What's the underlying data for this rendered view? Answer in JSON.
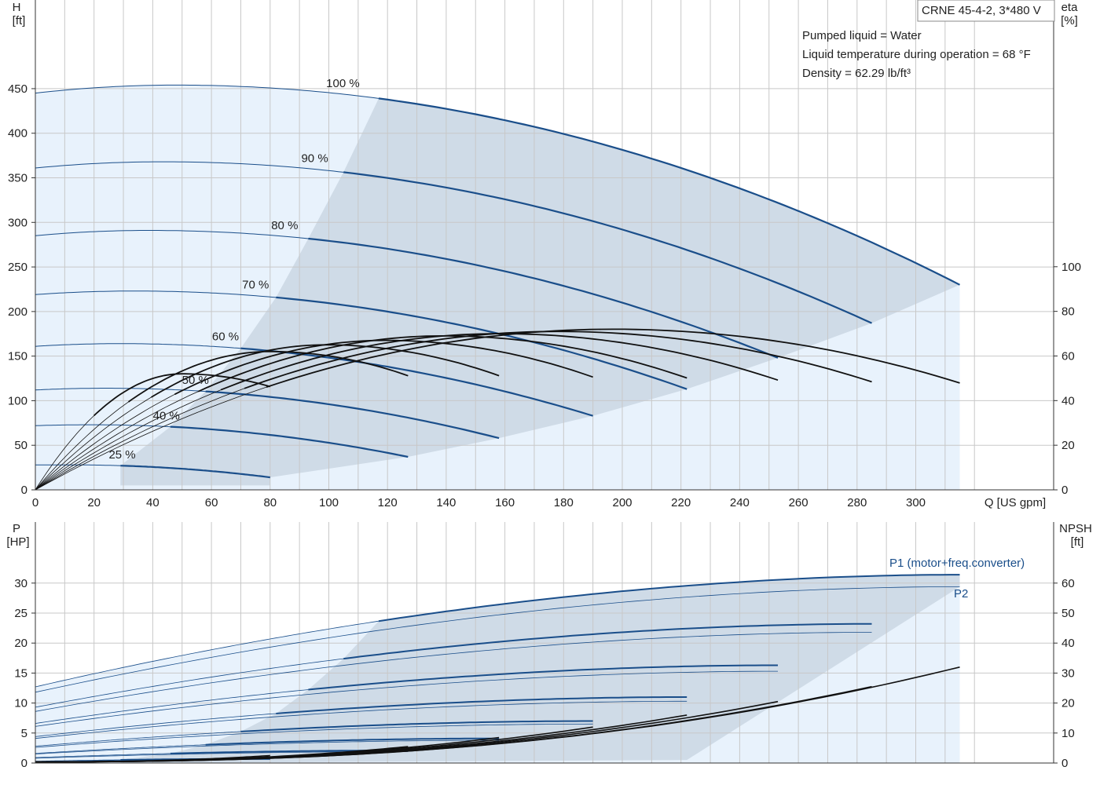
{
  "header": {
    "model": "CRNE 45-4-2, 3*480 V",
    "conditions": [
      "Pumped liquid = Water",
      "Liquid temperature during operation = 68 °F",
      "Density = 62.29 lb/ft³"
    ]
  },
  "colors": {
    "curve_blue": "#1a4e8a",
    "curve_black": "#111111",
    "band_light": "#e8f2fc",
    "band_dark": "#cfdbe7",
    "grid": "#c8c8c8"
  },
  "chart_data": [
    {
      "type": "line",
      "name": "head-efficiency",
      "xlabel": "Q [US gpm]",
      "ylabel_left": [
        "H",
        "[ft]"
      ],
      "ylabel_right": [
        "eta",
        "[%]"
      ],
      "xlim": [
        0,
        320
      ],
      "ylim_left": [
        0,
        500
      ],
      "ylim_right": [
        0,
        100
      ],
      "x_ticks": [
        0,
        20,
        40,
        60,
        80,
        100,
        120,
        140,
        160,
        180,
        200,
        220,
        240,
        260,
        280,
        300
      ],
      "y_ticks_left": [
        0,
        50,
        100,
        150,
        200,
        250,
        300,
        350,
        400,
        450
      ],
      "y_ticks_right": [
        0,
        20,
        40,
        60,
        80,
        100
      ],
      "grid": true,
      "head_curves": [
        {
          "label": "100 %",
          "H0": 445,
          "Hmax": 454,
          "xmax": 315,
          "Hend": 230,
          "xopt": 117
        },
        {
          "label": "90 %",
          "H0": 361,
          "Hmax": 368,
          "xmax": 285,
          "Hend": 187,
          "xopt": 105
        },
        {
          "label": "80 %",
          "H0": 285,
          "Hmax": 291,
          "xmax": 253,
          "Hend": 148,
          "xopt": 93
        },
        {
          "label": "70 %",
          "H0": 219,
          "Hmax": 223,
          "xmax": 222,
          "Hend": 113,
          "xopt": 82
        },
        {
          "label": "60 %",
          "H0": 161,
          "Hmax": 164,
          "xmax": 190,
          "Hend": 83,
          "xopt": 70
        },
        {
          "label": "50 %",
          "H0": 112,
          "Hmax": 114,
          "xmax": 158,
          "Hend": 58,
          "xopt": 58
        },
        {
          "label": "40 %",
          "H0": 72,
          "Hmax": 73,
          "xmax": 127,
          "Hend": 37,
          "xopt": 46
        },
        {
          "label": "25 %",
          "H0": 28,
          "Hmax": 28,
          "xmax": 80,
          "Hend": 14,
          "xopt": 29
        }
      ],
      "efficiency_curves": [
        {
          "xmax": 315,
          "etaPeak": 72,
          "xPeak": 197
        },
        {
          "xmax": 285,
          "etaPeak": 71,
          "xPeak": 178
        },
        {
          "xmax": 253,
          "etaPeak": 70,
          "xPeak": 158
        },
        {
          "xmax": 222,
          "etaPeak": 69,
          "xPeak": 139
        },
        {
          "xmax": 190,
          "etaPeak": 67,
          "xPeak": 119
        },
        {
          "xmax": 158,
          "etaPeak": 65,
          "xPeak": 99
        },
        {
          "xmax": 127,
          "etaPeak": 62,
          "xPeak": 80
        },
        {
          "xmax": 80,
          "etaPeak": 52,
          "xPeak": 50
        }
      ]
    },
    {
      "type": "line",
      "name": "power-npsh",
      "xlim": [
        0,
        320
      ],
      "ylabel_left": [
        "P",
        "[HP]"
      ],
      "ylabel_right": [
        "NPSH",
        "[ft]"
      ],
      "ylim_left": [
        0,
        35
      ],
      "ylim_right": [
        0,
        70
      ],
      "y_ticks_left": [
        0,
        5,
        10,
        15,
        20,
        25,
        30
      ],
      "y_ticks_right": [
        0,
        10,
        20,
        30,
        40,
        50,
        60
      ],
      "grid": true,
      "series_labels": [
        "P1 (motor+freq.converter)",
        "P2"
      ],
      "power_curves": [
        {
          "xmax": 315,
          "P1_0": 12.7,
          "P1_end": 31.4,
          "P2_0": 11.8,
          "P2_end": 29.4,
          "xopt": 117
        },
        {
          "xmax": 285,
          "P1_0": 9.3,
          "P1_end": 23.2,
          "P2_0": 8.6,
          "P2_end": 21.8,
          "xopt": 105
        },
        {
          "xmax": 253,
          "P1_0": 6.6,
          "P1_end": 16.3,
          "P2_0": 6.1,
          "P2_end": 15.3,
          "xopt": 93
        },
        {
          "xmax": 222,
          "P1_0": 4.4,
          "P1_end": 11.0,
          "P2_0": 4.1,
          "P2_end": 10.3,
          "xopt": 82
        },
        {
          "xmax": 190,
          "P1_0": 2.8,
          "P1_end": 7.0,
          "P2_0": 2.6,
          "P2_end": 6.5,
          "xopt": 70
        },
        {
          "xmax": 158,
          "P1_0": 1.6,
          "P1_end": 4.1,
          "P2_0": 1.5,
          "P2_end": 3.8,
          "xopt": 58
        },
        {
          "xmax": 127,
          "P1_0": 0.9,
          "P1_end": 2.1,
          "P2_0": 0.8,
          "P2_end": 1.9,
          "xopt": 46
        },
        {
          "xmax": 80,
          "P1_0": 0.3,
          "P1_end": 0.7,
          "P2_0": 0.2,
          "P2_end": 0.6,
          "xopt": 29
        }
      ],
      "npsh_curves": [
        {
          "xmax": 315,
          "npsh_end": 32
        },
        {
          "xmax": 285,
          "npsh_end": 25.5
        },
        {
          "xmax": 253,
          "npsh_end": 20.5
        },
        {
          "xmax": 222,
          "npsh_end": 16
        },
        {
          "xmax": 190,
          "npsh_end": 12
        },
        {
          "xmax": 158,
          "npsh_end": 8.5
        },
        {
          "xmax": 127,
          "npsh_end": 5.5
        },
        {
          "xmax": 80,
          "npsh_end": 2.5
        }
      ]
    }
  ]
}
